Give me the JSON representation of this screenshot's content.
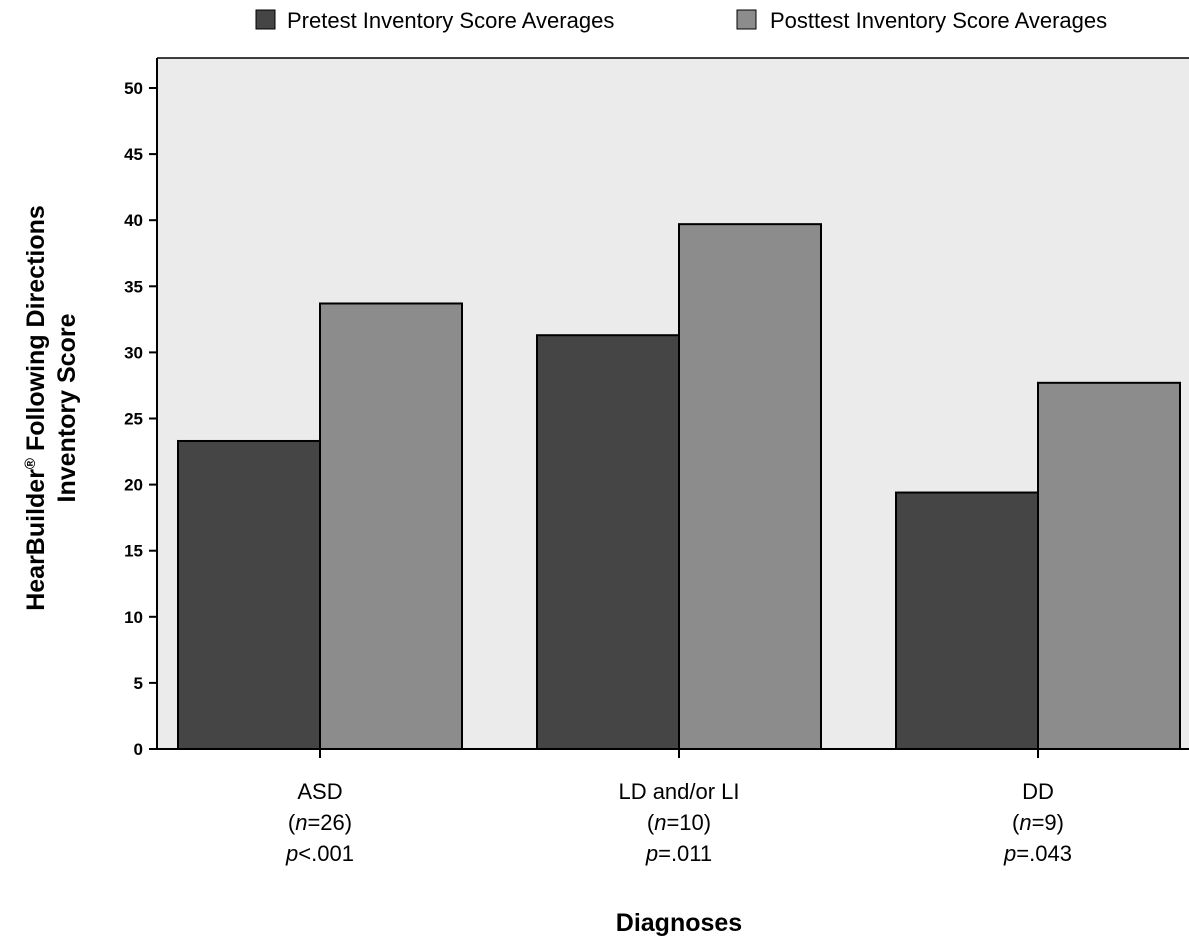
{
  "chart_data": {
    "type": "bar",
    "legend_position": "top",
    "grid": false,
    "ylim": [
      0,
      50
    ],
    "yticks": [
      0,
      5,
      10,
      15,
      20,
      25,
      30,
      35,
      40,
      45,
      50
    ],
    "categories": [
      {
        "name": "ASD",
        "n": "26",
        "p_op": "<",
        "p_val": ".001"
      },
      {
        "name": "LD and/or LI",
        "n": "10",
        "p_op": "=",
        "p_val": ".011"
      },
      {
        "name": "DD",
        "n": "9",
        "p_op": "=",
        "p_val": ".043"
      }
    ],
    "series": [
      {
        "name": "Pretest Inventory Score Averages",
        "color": "#454545",
        "values": [
          23.3,
          31.3,
          19.4
        ]
      },
      {
        "name": "Posttest Inventory Score Averages",
        "color": "#8c8c8c",
        "values": [
          33.7,
          39.7,
          27.7
        ]
      }
    ],
    "xlabel": "Diagnoses",
    "ylabel": {
      "line1_prefix": "HearBuilder",
      "registered_mark": "®",
      "line1_suffix": " Following Directions",
      "line2": "Inventory Score"
    },
    "plot_background": "#ebebeb"
  }
}
